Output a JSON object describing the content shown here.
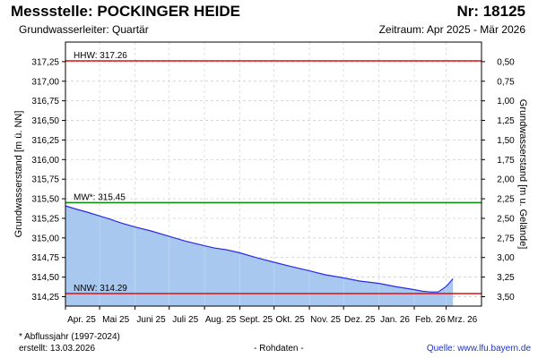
{
  "header": {
    "title": "Messstelle: POCKINGER HEIDE",
    "number": "Nr: 18125",
    "aquifer": "Grundwasserleiter: Quartär",
    "period": "Zeitraum: Apr 2025 - Mär 2026"
  },
  "footer": {
    "footnote": "* Abflussjahr (1997-2024)",
    "created": "erstellt:  13.03.2026",
    "status": "- Rohdaten -",
    "source": "Quelle: www.lfu.bayern.de"
  },
  "colors": {
    "area_fill": "#a8c8f0",
    "line": "#2a2ae6",
    "hhw": "#e01010",
    "mw": "#108a10",
    "nnw": "#e01010",
    "grid": "#c8c8c8"
  },
  "chart_data": {
    "type": "area",
    "ylabel": "Grundwasserstand [m ü. NN]",
    "y2label": "Grundwasserstand [m u. Gelände]",
    "ylim": [
      314.13,
      317.5
    ],
    "yticks": [
      314.25,
      314.5,
      314.75,
      315.0,
      315.25,
      315.5,
      315.75,
      316.0,
      316.25,
      316.5,
      316.75,
      317.0,
      317.25
    ],
    "ytick_labels": [
      "314,25",
      "314,50",
      "314,75",
      "315,00",
      "315,25",
      "315,50",
      "315,75",
      "316,00",
      "316,25",
      "316,50",
      "316,75",
      "317,00",
      "317,25"
    ],
    "y2ticks": [
      0.5,
      0.75,
      1.0,
      1.25,
      1.5,
      1.75,
      2.0,
      2.25,
      2.5,
      2.75,
      3.0,
      3.25,
      3.5
    ],
    "y2tick_labels": [
      "0,50",
      "0,75",
      "1,00",
      "1,25",
      "1,50",
      "1,75",
      "2,00",
      "2,25",
      "2,50",
      "2,75",
      "3,00",
      "3,25",
      "3,50"
    ],
    "y2_reference": 317.75,
    "xlim": [
      "2025-04-01",
      "2026-04-01"
    ],
    "xticks": [
      "2025-04-01",
      "2025-05-01",
      "2025-06-01",
      "2025-07-01",
      "2025-08-01",
      "2025-09-01",
      "2025-10-01",
      "2025-11-01",
      "2025-12-01",
      "2026-01-01",
      "2026-02-01",
      "2026-03-01"
    ],
    "xtick_labels": [
      "Apr. 25",
      "Mai 25",
      "Juni 25",
      "Juli 25",
      "Aug. 25",
      "Sept. 25",
      "Okt. 25",
      "Nov. 25",
      "Dez. 25",
      "Jan. 26",
      "Feb. 26",
      "Mrz. 26"
    ],
    "grid": true,
    "series": [
      {
        "x": [
          "2025-04-01",
          "2025-04-10",
          "2025-04-20",
          "2025-05-01",
          "2025-05-10",
          "2025-05-20",
          "2025-06-01",
          "2025-06-15",
          "2025-07-01",
          "2025-07-15",
          "2025-08-01",
          "2025-08-10",
          "2025-08-20",
          "2025-09-01",
          "2025-09-15",
          "2025-10-01",
          "2025-10-15",
          "2025-11-01",
          "2025-11-15",
          "2025-12-01",
          "2025-12-15",
          "2026-01-01",
          "2026-01-15",
          "2026-02-01",
          "2026-02-08",
          "2026-02-15",
          "2026-02-22",
          "2026-03-01",
          "2026-03-07"
        ],
        "values": [
          315.41,
          315.37,
          315.33,
          315.28,
          315.24,
          315.19,
          315.14,
          315.09,
          315.02,
          314.96,
          314.9,
          314.87,
          314.85,
          314.81,
          314.75,
          314.69,
          314.64,
          314.58,
          314.53,
          314.49,
          314.45,
          314.42,
          314.38,
          314.34,
          314.32,
          314.31,
          314.31,
          314.38,
          314.48
        ]
      }
    ],
    "reference_lines": [
      {
        "label": "HHW: 317.26",
        "value": 317.26
      },
      {
        "label": "MW*: 315.45",
        "value": 315.45
      },
      {
        "label": "NNW: 314.29",
        "value": 314.29
      }
    ]
  }
}
